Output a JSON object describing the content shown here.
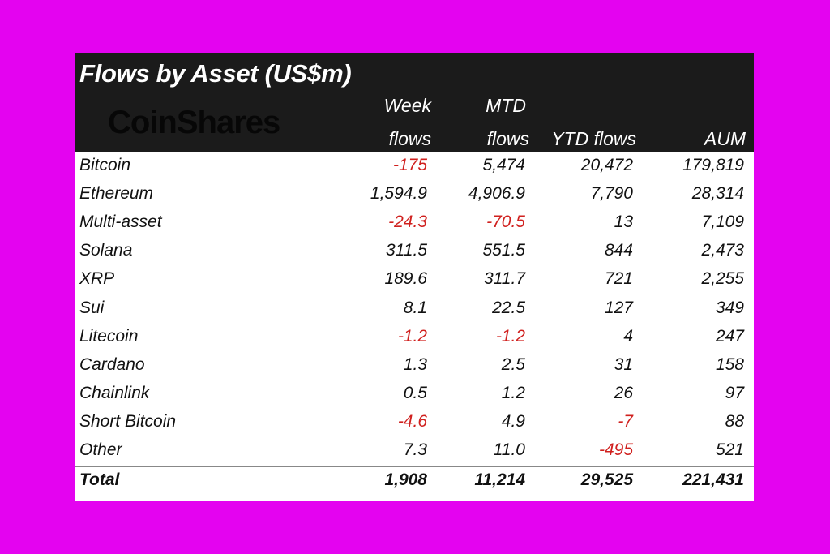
{
  "title": "Flows by Asset (US$m)",
  "logo": "CoinShares",
  "headers": {
    "week1": "Week",
    "week2": "flows",
    "mtd1": "MTD",
    "mtd2": "flows",
    "ytd": "YTD flows",
    "aum": "AUM"
  },
  "rows": [
    {
      "name": "Bitcoin",
      "week": "-175",
      "mtd": "5,474",
      "ytd": "20,472",
      "aum": "179,819"
    },
    {
      "name": "Ethereum",
      "week": "1,594.9",
      "mtd": "4,906.9",
      "ytd": "7,790",
      "aum": "28,314"
    },
    {
      "name": "Multi-asset",
      "week": "-24.3",
      "mtd": "-70.5",
      "ytd": "13",
      "aum": "7,109"
    },
    {
      "name": "Solana",
      "week": "311.5",
      "mtd": "551.5",
      "ytd": "844",
      "aum": "2,473"
    },
    {
      "name": "XRP",
      "week": "189.6",
      "mtd": "311.7",
      "ytd": "721",
      "aum": "2,255"
    },
    {
      "name": "Sui",
      "week": "8.1",
      "mtd": "22.5",
      "ytd": "127",
      "aum": "349"
    },
    {
      "name": "Litecoin",
      "week": "-1.2",
      "mtd": "-1.2",
      "ytd": "4",
      "aum": "247"
    },
    {
      "name": "Cardano",
      "week": "1.3",
      "mtd": "2.5",
      "ytd": "31",
      "aum": "158"
    },
    {
      "name": "Chainlink",
      "week": "0.5",
      "mtd": "1.2",
      "ytd": "26",
      "aum": "97"
    },
    {
      "name": "Short Bitcoin",
      "week": "-4.6",
      "mtd": "4.9",
      "ytd": "-7",
      "aum": "88"
    },
    {
      "name": "Other",
      "week": "7.3",
      "mtd": "11.0",
      "ytd": "-495",
      "aum": "521"
    }
  ],
  "total": {
    "name": "Total",
    "week": "1,908",
    "mtd": "11,214",
    "ytd": "29,525",
    "aum": "221,431"
  },
  "colors": {
    "negative": "#d0201e",
    "header_bg": "#1b1b1b",
    "background": "#e403f0"
  }
}
